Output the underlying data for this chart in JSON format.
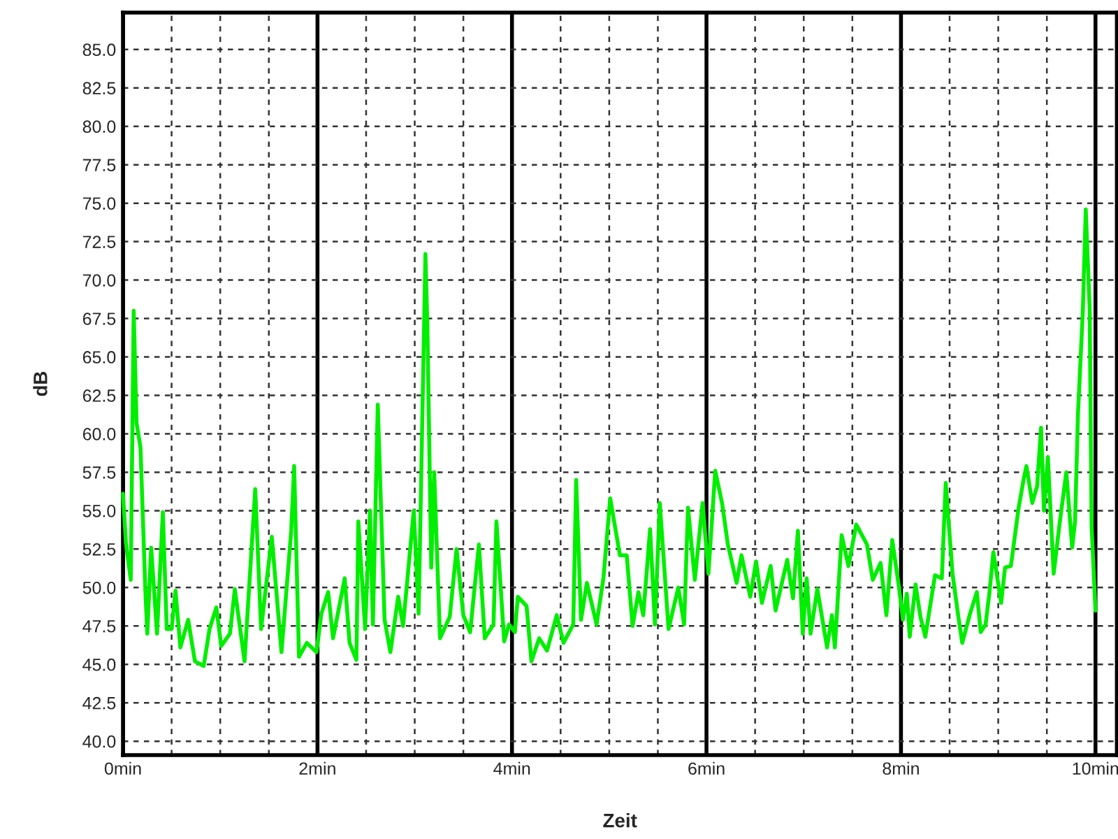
{
  "chart_data": {
    "type": "line",
    "xlabel": "Zeit",
    "ylabel": "dB",
    "xlim": [
      0,
      10.22
    ],
    "ylim": [
      39.1,
      87.4
    ],
    "xticks": [
      {
        "value": 0,
        "label": "0min"
      },
      {
        "value": 0.5,
        "label": null
      },
      {
        "value": 1,
        "label": null
      },
      {
        "value": 1.5,
        "label": null
      },
      {
        "value": 2,
        "label": "2min"
      },
      {
        "value": 2.5,
        "label": null
      },
      {
        "value": 3,
        "label": null
      },
      {
        "value": 3.5,
        "label": null
      },
      {
        "value": 4,
        "label": "4min"
      },
      {
        "value": 4.5,
        "label": null
      },
      {
        "value": 5,
        "label": null
      },
      {
        "value": 5.5,
        "label": null
      },
      {
        "value": 6,
        "label": "6min"
      },
      {
        "value": 6.5,
        "label": null
      },
      {
        "value": 7,
        "label": null
      },
      {
        "value": 7.5,
        "label": null
      },
      {
        "value": 8,
        "label": "8min"
      },
      {
        "value": 8.5,
        "label": null
      },
      {
        "value": 9,
        "label": null
      },
      {
        "value": 9.5,
        "label": null
      },
      {
        "value": 10,
        "label": "10min"
      }
    ],
    "yticks": [
      {
        "value": 40,
        "label": "40.0"
      },
      {
        "value": 42.5,
        "label": "42.5"
      },
      {
        "value": 45,
        "label": "45.0"
      },
      {
        "value": 47.5,
        "label": "47.5"
      },
      {
        "value": 50,
        "label": "50.0"
      },
      {
        "value": 52.5,
        "label": "52.5"
      },
      {
        "value": 55,
        "label": "55.0"
      },
      {
        "value": 57.5,
        "label": "57.5"
      },
      {
        "value": 60,
        "label": "60.0"
      },
      {
        "value": 62.5,
        "label": "62.5"
      },
      {
        "value": 65,
        "label": "65.0"
      },
      {
        "value": 67.5,
        "label": "67.5"
      },
      {
        "value": 70,
        "label": "70.0"
      },
      {
        "value": 72.5,
        "label": "72.5"
      },
      {
        "value": 75,
        "label": "75.0"
      },
      {
        "value": 77.5,
        "label": "77.5"
      },
      {
        "value": 80,
        "label": "80.0"
      },
      {
        "value": 82.5,
        "label": "82.5"
      },
      {
        "value": 85,
        "label": "85.0"
      }
    ],
    "grid": true,
    "marker": "none",
    "line_style": "solid",
    "series": [
      {
        "color": "#00ee00",
        "x": [
          0,
          0.03,
          0.08,
          0.11,
          0.14,
          0.18,
          0.23,
          0.25,
          0.29,
          0.35,
          0.41,
          0.45,
          0.5,
          0.54,
          0.59,
          0.67,
          0.74,
          0.83,
          0.89,
          0.96,
          1.01,
          1.1,
          1.15,
          1.25,
          1.36,
          1.42,
          1.53,
          1.63,
          1.73,
          1.76,
          1.81,
          1.89,
          1.99,
          2.04,
          2.11,
          2.16,
          2.28,
          2.33,
          2.4,
          2.42,
          2.49,
          2.54,
          2.57,
          2.62,
          2.69,
          2.75,
          2.83,
          2.88,
          2.99,
          3.04,
          3.11,
          3.13,
          3.17,
          3.2,
          3.26,
          3.36,
          3.43,
          3.5,
          3.57,
          3.66,
          3.72,
          3.81,
          3.84,
          3.92,
          3.97,
          4.03,
          4.06,
          4.15,
          4.2,
          4.28,
          4.36,
          4.46,
          4.53,
          4.63,
          4.66,
          4.71,
          4.77,
          4.87,
          4.94,
          5.01,
          5.11,
          5.18,
          5.24,
          5.3,
          5.35,
          5.42,
          5.47,
          5.52,
          5.61,
          5.71,
          5.77,
          5.81,
          5.88,
          5.96,
          6.02,
          6.09,
          6.16,
          6.22,
          6.31,
          6.36,
          6.45,
          6.51,
          6.57,
          6.66,
          6.71,
          6.83,
          6.89,
          6.94,
          6.99,
          7.03,
          7.07,
          7.14,
          7.24,
          7.29,
          7.32,
          7.39,
          7.46,
          7.54,
          7.65,
          7.71,
          7.79,
          7.85,
          7.91,
          7.98,
          8.02,
          8.06,
          8.09,
          8.15,
          8.2,
          8.25,
          8.35,
          8.42,
          8.46,
          8.53,
          8.59,
          8.63,
          8.71,
          8.78,
          8.82,
          8.87,
          8.91,
          8.95,
          9.03,
          9.07,
          9.13,
          9.21,
          9.26,
          9.29,
          9.35,
          9.4,
          9.44,
          9.47,
          9.51,
          9.57,
          9.63,
          9.7,
          9.76,
          9.79,
          9.82,
          9.87,
          9.9,
          9.94,
          9.96,
          10.0
        ],
        "values": [
          56.1,
          52.9,
          50.5,
          68.0,
          60.7,
          59.1,
          49.8,
          47.0,
          52.6,
          47.0,
          54.9,
          47.3,
          47.3,
          49.8,
          46.1,
          47.9,
          45.2,
          44.9,
          47.3,
          48.7,
          46.2,
          47.0,
          49.9,
          45.2,
          56.4,
          47.3,
          53.3,
          45.8,
          53.7,
          57.9,
          45.5,
          46.4,
          45.8,
          48.3,
          49.7,
          46.7,
          50.6,
          46.4,
          45.3,
          54.3,
          47.3,
          55.0,
          47.6,
          61.9,
          47.9,
          45.8,
          49.4,
          47.5,
          55.0,
          48.3,
          71.7,
          67.0,
          51.3,
          57.5,
          46.7,
          48.1,
          52.5,
          48.2,
          47.1,
          52.8,
          46.7,
          47.6,
          54.3,
          46.5,
          47.6,
          47.1,
          49.4,
          48.8,
          45.2,
          46.7,
          45.9,
          48.2,
          46.4,
          47.6,
          57.0,
          47.9,
          50.3,
          47.6,
          50.6,
          55.8,
          52.1,
          52.1,
          47.5,
          49.7,
          48.2,
          53.8,
          47.6,
          55.5,
          47.3,
          50.0,
          47.6,
          55.2,
          50.5,
          55.5,
          50.9,
          57.6,
          55.5,
          52.8,
          50.3,
          52.1,
          49.4,
          51.7,
          49.0,
          51.4,
          48.5,
          51.8,
          49.3,
          53.7,
          47.0,
          50.6,
          47.0,
          49.9,
          46.1,
          48.2,
          46.1,
          53.4,
          51.4,
          54.1,
          52.8,
          50.5,
          51.6,
          48.2,
          53.1,
          50.0,
          47.9,
          49.6,
          46.8,
          50.2,
          48.1,
          46.8,
          50.8,
          50.6,
          56.8,
          50.9,
          48.1,
          46.4,
          48.3,
          49.7,
          47.1,
          47.6,
          49.7,
          52.3,
          49.0,
          51.3,
          51.4,
          55.2,
          57.0,
          57.9,
          55.5,
          56.6,
          60.4,
          55.0,
          58.5,
          50.9,
          54.1,
          57.5,
          52.6,
          54.3,
          61.3,
          68.0,
          74.6,
          68.2,
          54.0,
          48.5
        ]
      }
    ]
  }
}
